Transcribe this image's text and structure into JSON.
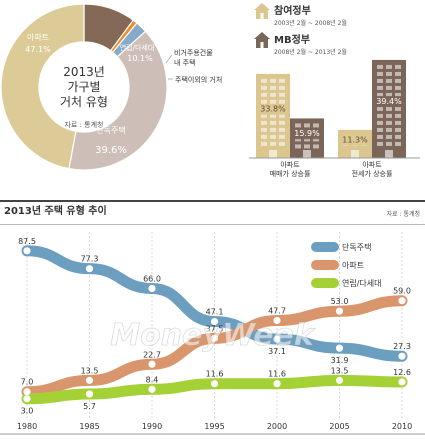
{
  "chart_data": [
    {
      "type": "pie",
      "title": "2013년 가구별 거처 유형",
      "source": "자료 : 통계청",
      "slices": [
        {
          "label": "아파트",
          "value": 47.1,
          "value_label": "47.1%",
          "color": "#dccb96"
        },
        {
          "label": "단독주택",
          "value": 39.6,
          "value_label": "39.6%",
          "color": "#cdbfb7"
        },
        {
          "label": "주택이외의 거처",
          "value": 2.3,
          "color": "#86abc9"
        },
        {
          "label": "비거주용건물 내 주택",
          "value": 0.9,
          "color": "#f08a2a"
        },
        {
          "label": "연립/다세대",
          "value": 10.1,
          "value_label": "10.1%",
          "color": "#856957"
        }
      ]
    },
    {
      "type": "bar",
      "legend": [
        {
          "name": "참여정부",
          "period": "2003년 2월 ~ 2008년 2월",
          "color": "#dcc68f"
        },
        {
          "name": "MB정부",
          "period": "2008년 2월 ~ 2013년 2월",
          "color": "#7b6458"
        }
      ],
      "categories": [
        "아파트 매매가 상승률",
        "아파트 전세가 상승률"
      ],
      "series": [
        {
          "name": "참여정부",
          "values": [
            33.8,
            11.3
          ],
          "labels": [
            "33.8%",
            "11.3%"
          ]
        },
        {
          "name": "MB정부",
          "values": [
            15.9,
            39.4
          ],
          "labels": [
            "15.9%",
            "39.4%"
          ]
        }
      ],
      "ylim": [
        0,
        45
      ]
    },
    {
      "type": "line",
      "title": "2013년 주택 유형 추이",
      "source": "자료 : 통계청",
      "x": [
        "1980",
        "1985",
        "1990",
        "1995",
        "2000",
        "2005",
        "2010"
      ],
      "series": [
        {
          "name": "단독주택",
          "color": "#6c9ec0",
          "values": [
            87.5,
            77.3,
            66.0,
            47.1,
            37.1,
            31.9,
            27.3
          ],
          "labels": [
            "87.5",
            "77.3",
            "66.0",
            "47.1",
            "37.1",
            "31.9",
            "27.3"
          ]
        },
        {
          "name": "아파트",
          "color": "#d9956c",
          "values": [
            7.0,
            13.5,
            22.7,
            37.5,
            47.7,
            53.0,
            59.0
          ],
          "labels": [
            "7.0",
            "13.5",
            "22.7",
            "37.5",
            "47.7",
            "53.0",
            "59.0"
          ]
        },
        {
          "name": "연립/다세대",
          "color": "#a4d135",
          "values": [
            3.0,
            5.7,
            8.4,
            11.6,
            11.6,
            13.5,
            12.6
          ],
          "labels": [
            "3.0",
            "5.7",
            "8.4",
            "11.6",
            "11.6",
            "13.5",
            "12.6"
          ]
        }
      ],
      "ylim": [
        0,
        95
      ]
    }
  ],
  "watermark": "MoneyWeek"
}
